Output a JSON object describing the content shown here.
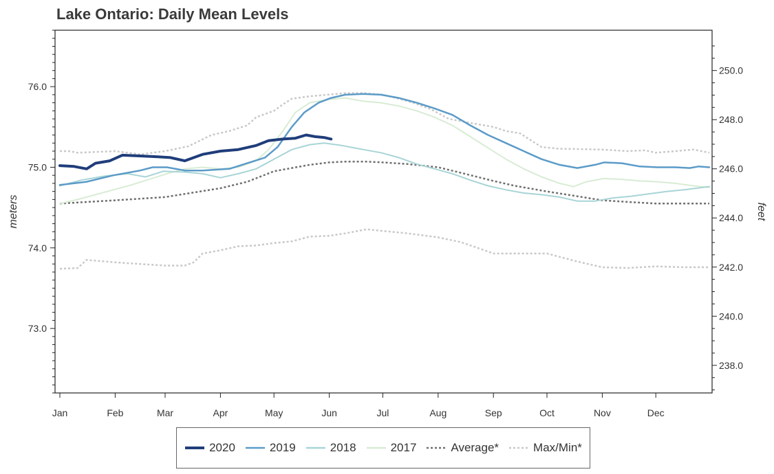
{
  "chart_data": {
    "type": "line",
    "title": "Lake Ontario: Daily Mean Levels",
    "ylabel": "meters",
    "y2label": "feet",
    "ylim": [
      72.2,
      76.7
    ],
    "y2ticks": [
      "238.0",
      "240.0",
      "242.0",
      "244.0",
      "246.0",
      "248.0",
      "250.0"
    ],
    "yticks": [
      "73.0",
      "74.0",
      "75.0",
      "76.0"
    ],
    "months": [
      "Jan",
      "Feb",
      "Mar",
      "Apr",
      "May",
      "Jun",
      "Jul",
      "Aug",
      "Sep",
      "Oct",
      "Nov",
      "Dec"
    ],
    "grid": false,
    "legend_position": "bottom",
    "series": [
      {
        "name": "2020",
        "color": "#1f3d7a",
        "style": "solid",
        "width": 4,
        "points": [
          [
            0,
            75.02
          ],
          [
            8,
            75.01
          ],
          [
            15,
            74.98
          ],
          [
            20,
            75.05
          ],
          [
            28,
            75.08
          ],
          [
            35,
            75.15
          ],
          [
            45,
            75.14
          ],
          [
            55,
            75.13
          ],
          [
            62,
            75.12
          ],
          [
            70,
            75.08
          ],
          [
            80,
            75.16
          ],
          [
            90,
            75.2
          ],
          [
            100,
            75.22
          ],
          [
            110,
            75.27
          ],
          [
            117,
            75.33
          ],
          [
            125,
            75.35
          ],
          [
            132,
            75.36
          ],
          [
            138,
            75.4
          ],
          [
            143,
            75.38
          ],
          [
            148,
            75.37
          ],
          [
            152,
            75.35
          ]
        ]
      },
      {
        "name": "2019",
        "color": "#5b9bc8",
        "style": "solid",
        "width": 2.5,
        "points": [
          [
            0,
            74.78
          ],
          [
            15,
            74.82
          ],
          [
            30,
            74.9
          ],
          [
            45,
            74.96
          ],
          [
            52,
            75.0
          ],
          [
            60,
            75.0
          ],
          [
            70,
            74.96
          ],
          [
            80,
            74.96
          ],
          [
            95,
            74.98
          ],
          [
            105,
            75.05
          ],
          [
            115,
            75.12
          ],
          [
            122,
            75.25
          ],
          [
            130,
            75.5
          ],
          [
            137,
            75.68
          ],
          [
            145,
            75.8
          ],
          [
            152,
            75.86
          ],
          [
            160,
            75.9
          ],
          [
            170,
            75.91
          ],
          [
            180,
            75.9
          ],
          [
            190,
            75.86
          ],
          [
            200,
            75.8
          ],
          [
            210,
            75.73
          ],
          [
            220,
            75.65
          ],
          [
            230,
            75.52
          ],
          [
            240,
            75.4
          ],
          [
            250,
            75.3
          ],
          [
            260,
            75.2
          ],
          [
            270,
            75.1
          ],
          [
            280,
            75.03
          ],
          [
            290,
            74.99
          ],
          [
            300,
            75.03
          ],
          [
            305,
            75.06
          ],
          [
            315,
            75.05
          ],
          [
            325,
            75.01
          ],
          [
            335,
            75.0
          ],
          [
            345,
            75.0
          ],
          [
            353,
            74.99
          ],
          [
            358,
            75.01
          ],
          [
            364,
            75.0
          ]
        ]
      },
      {
        "name": "2018",
        "color": "#a8d4d6",
        "style": "solid",
        "width": 2,
        "points": [
          [
            0,
            74.77
          ],
          [
            12,
            74.84
          ],
          [
            25,
            74.89
          ],
          [
            38,
            74.92
          ],
          [
            48,
            74.88
          ],
          [
            58,
            74.95
          ],
          [
            70,
            74.94
          ],
          [
            80,
            74.92
          ],
          [
            90,
            74.87
          ],
          [
            100,
            74.92
          ],
          [
            110,
            74.98
          ],
          [
            120,
            75.1
          ],
          [
            130,
            75.22
          ],
          [
            140,
            75.28
          ],
          [
            148,
            75.3
          ],
          [
            158,
            75.27
          ],
          [
            170,
            75.22
          ],
          [
            180,
            75.18
          ],
          [
            190,
            75.12
          ],
          [
            200,
            75.04
          ],
          [
            210,
            74.98
          ],
          [
            220,
            74.92
          ],
          [
            230,
            74.84
          ],
          [
            240,
            74.77
          ],
          [
            250,
            74.72
          ],
          [
            260,
            74.68
          ],
          [
            270,
            74.66
          ],
          [
            280,
            74.63
          ],
          [
            290,
            74.58
          ],
          [
            300,
            74.58
          ],
          [
            310,
            74.62
          ],
          [
            320,
            74.64
          ],
          [
            330,
            74.67
          ],
          [
            340,
            74.7
          ],
          [
            350,
            74.72
          ],
          [
            364,
            74.76
          ]
        ]
      },
      {
        "name": "2017",
        "color": "#d8ecd4",
        "style": "solid",
        "width": 2,
        "points": [
          [
            0,
            74.55
          ],
          [
            10,
            74.6
          ],
          [
            20,
            74.66
          ],
          [
            30,
            74.72
          ],
          [
            40,
            74.78
          ],
          [
            50,
            74.85
          ],
          [
            60,
            74.92
          ],
          [
            70,
            74.98
          ],
          [
            80,
            75.0
          ],
          [
            90,
            74.98
          ],
          [
            100,
            75.0
          ],
          [
            110,
            75.08
          ],
          [
            117,
            75.22
          ],
          [
            125,
            75.45
          ],
          [
            132,
            75.68
          ],
          [
            140,
            75.8
          ],
          [
            150,
            75.84
          ],
          [
            160,
            75.86
          ],
          [
            170,
            75.82
          ],
          [
            180,
            75.8
          ],
          [
            190,
            75.76
          ],
          [
            200,
            75.7
          ],
          [
            210,
            75.62
          ],
          [
            220,
            75.52
          ],
          [
            230,
            75.38
          ],
          [
            240,
            75.24
          ],
          [
            250,
            75.1
          ],
          [
            260,
            74.98
          ],
          [
            270,
            74.88
          ],
          [
            280,
            74.8
          ],
          [
            288,
            74.76
          ],
          [
            295,
            74.82
          ],
          [
            305,
            74.86
          ],
          [
            315,
            74.85
          ],
          [
            325,
            74.83
          ],
          [
            335,
            74.82
          ],
          [
            345,
            74.8
          ],
          [
            355,
            74.77
          ],
          [
            364,
            74.75
          ]
        ]
      },
      {
        "name": "Average*",
        "color": "#6e6e6e",
        "style": "dotted",
        "width": 2.5,
        "points": [
          [
            0,
            74.55
          ],
          [
            31,
            74.59
          ],
          [
            59,
            74.63
          ],
          [
            90,
            74.74
          ],
          [
            105,
            74.82
          ],
          [
            120,
            74.95
          ],
          [
            130,
            74.99
          ],
          [
            140,
            75.03
          ],
          [
            151,
            75.06
          ],
          [
            160,
            75.07
          ],
          [
            172,
            75.07
          ],
          [
            181,
            75.06
          ],
          [
            195,
            75.04
          ],
          [
            212,
            75.0
          ],
          [
            225,
            74.93
          ],
          [
            243,
            74.83
          ],
          [
            255,
            74.77
          ],
          [
            273,
            74.7
          ],
          [
            290,
            74.64
          ],
          [
            304,
            74.59
          ],
          [
            318,
            74.57
          ],
          [
            334,
            74.55
          ],
          [
            364,
            74.55
          ]
        ]
      },
      {
        "name": "Max/Min*",
        "color": "#c8c8c8",
        "style": "dotted",
        "width": 2.5,
        "points": [
          [
            0,
            75.2
          ],
          [
            5,
            75.2
          ],
          [
            10,
            75.18
          ],
          [
            31,
            75.2
          ],
          [
            45,
            75.16
          ],
          [
            59,
            75.2
          ],
          [
            72,
            75.26
          ],
          [
            85,
            75.4
          ],
          [
            95,
            75.45
          ],
          [
            105,
            75.52
          ],
          [
            110,
            75.62
          ],
          [
            120,
            75.7
          ],
          [
            125,
            75.78
          ],
          [
            130,
            75.85
          ],
          [
            140,
            75.88
          ],
          [
            150,
            75.9
          ],
          [
            160,
            75.92
          ],
          [
            170,
            75.92
          ],
          [
            181,
            75.9
          ],
          [
            190,
            75.85
          ],
          [
            198,
            75.8
          ],
          [
            208,
            75.72
          ],
          [
            218,
            75.6
          ],
          [
            230,
            75.55
          ],
          [
            243,
            75.5
          ],
          [
            250,
            75.45
          ],
          [
            258,
            75.42
          ],
          [
            270,
            75.25
          ],
          [
            280,
            75.23
          ],
          [
            304,
            75.22
          ],
          [
            318,
            75.2
          ],
          [
            328,
            75.21
          ],
          [
            334,
            75.18
          ],
          [
            345,
            75.2
          ],
          [
            355,
            75.22
          ],
          [
            364,
            75.18
          ]
        ]
      },
      {
        "name": "Max/Min*",
        "color": "#c8c8c8",
        "style": "dotted",
        "width": 2.5,
        "points": [
          [
            0,
            73.74
          ],
          [
            10,
            73.75
          ],
          [
            15,
            73.85
          ],
          [
            31,
            73.82
          ],
          [
            45,
            73.8
          ],
          [
            59,
            73.78
          ],
          [
            70,
            73.78
          ],
          [
            75,
            73.82
          ],
          [
            80,
            73.93
          ],
          [
            90,
            73.97
          ],
          [
            100,
            74.02
          ],
          [
            110,
            74.03
          ],
          [
            120,
            74.06
          ],
          [
            130,
            74.08
          ],
          [
            140,
            74.14
          ],
          [
            151,
            74.15
          ],
          [
            160,
            74.18
          ],
          [
            172,
            74.23
          ],
          [
            181,
            74.21
          ],
          [
            195,
            74.18
          ],
          [
            212,
            74.13
          ],
          [
            225,
            74.07
          ],
          [
            243,
            73.93
          ],
          [
            255,
            73.93
          ],
          [
            273,
            73.93
          ],
          [
            290,
            73.83
          ],
          [
            304,
            73.76
          ],
          [
            318,
            73.75
          ],
          [
            334,
            73.77
          ],
          [
            350,
            73.76
          ],
          [
            364,
            73.76
          ]
        ]
      }
    ]
  }
}
